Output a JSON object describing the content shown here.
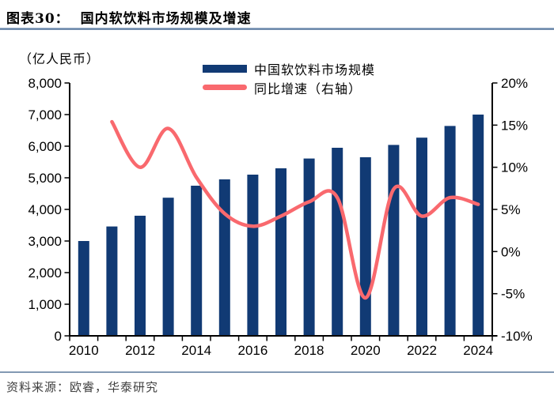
{
  "header": {
    "figure_label": "图表30：",
    "title": "国内软饮料市场规模及增速"
  },
  "chart_data": {
    "type": "bar+line",
    "title": "国内软饮料市场规模及增速",
    "unit_label": "（亿人民币）",
    "grid": false,
    "legend_position": "top-center",
    "categories": [
      "2010",
      "2011",
      "2012",
      "2013",
      "2014",
      "2015",
      "2016",
      "2017",
      "2018",
      "2019",
      "2020",
      "2021",
      "2022",
      "2023",
      "2024"
    ],
    "x_axis_tick_labels": [
      "2010",
      "2012",
      "2014",
      "2016",
      "2018",
      "2020",
      "2022",
      "2024"
    ],
    "left_axis": {
      "min": 0,
      "max": 8000,
      "step": 1000,
      "tick_labels": [
        "0",
        "1,000",
        "2,000",
        "3,000",
        "4,000",
        "5,000",
        "6,000",
        "7,000",
        "8,000"
      ]
    },
    "right_axis": {
      "min": -10,
      "max": 20,
      "step": 5,
      "tick_labels": [
        "-10%",
        "-5%",
        "0%",
        "5%",
        "10%",
        "15%",
        "20%"
      ]
    },
    "series": [
      {
        "name": "中国软饮料市场规模",
        "type": "bar",
        "axis": "left",
        "color": "#113a74",
        "values": [
          3000,
          3460,
          3800,
          4370,
          4750,
          4950,
          5100,
          5300,
          5610,
          5950,
          5650,
          6040,
          6270,
          6640,
          7000
        ]
      },
      {
        "name": "同比增速（右轴）",
        "type": "line",
        "axis": "right",
        "color": "#f9696e",
        "start_category": "2011",
        "values_pct": [
          15.4,
          10.0,
          14.6,
          8.8,
          4.5,
          3.0,
          4.2,
          5.9,
          6.4,
          -5.5,
          7.4,
          4.2,
          6.4,
          5.6
        ]
      }
    ]
  },
  "footer": {
    "source": "资料来源：欧睿，华泰研究"
  }
}
